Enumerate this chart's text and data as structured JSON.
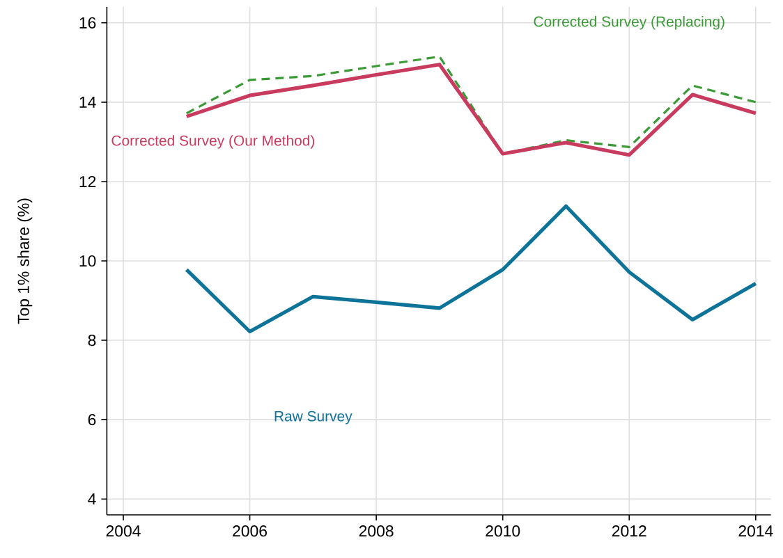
{
  "chart_data": {
    "type": "line",
    "ylabel": "Top 1% share (%)",
    "x": [
      2005,
      2006,
      2007,
      2008,
      2009,
      2010,
      2011,
      2012,
      2013,
      2014
    ],
    "series": [
      {
        "name": "Corrected Survey (Replacing)",
        "color": "#3a9a35",
        "line_style": "dashed",
        "values": [
          13.72,
          14.56,
          14.66,
          14.91,
          15.15,
          12.7,
          13.04,
          12.87,
          14.42,
          14.0
        ]
      },
      {
        "name": "Corrected Survey (Our Method)",
        "color": "#c83a5e",
        "line_style": "solid",
        "values": [
          13.64,
          14.17,
          14.42,
          14.69,
          14.95,
          12.7,
          12.98,
          12.67,
          14.19,
          13.72
        ]
      },
      {
        "name": "Raw Survey",
        "color": "#0e7399",
        "line_style": "solid",
        "values": [
          9.78,
          8.22,
          9.1,
          8.96,
          8.81,
          9.78,
          11.38,
          9.72,
          8.52,
          9.43
        ]
      }
    ],
    "xlim": [
      2003.74,
      2014.24
    ],
    "ylim": [
      3.6,
      16.4
    ],
    "xticks": [
      2004,
      2006,
      2008,
      2010,
      2012,
      2014
    ],
    "yticks": [
      4,
      6,
      8,
      10,
      12,
      14,
      16
    ],
    "grid": true,
    "marker": "none"
  }
}
